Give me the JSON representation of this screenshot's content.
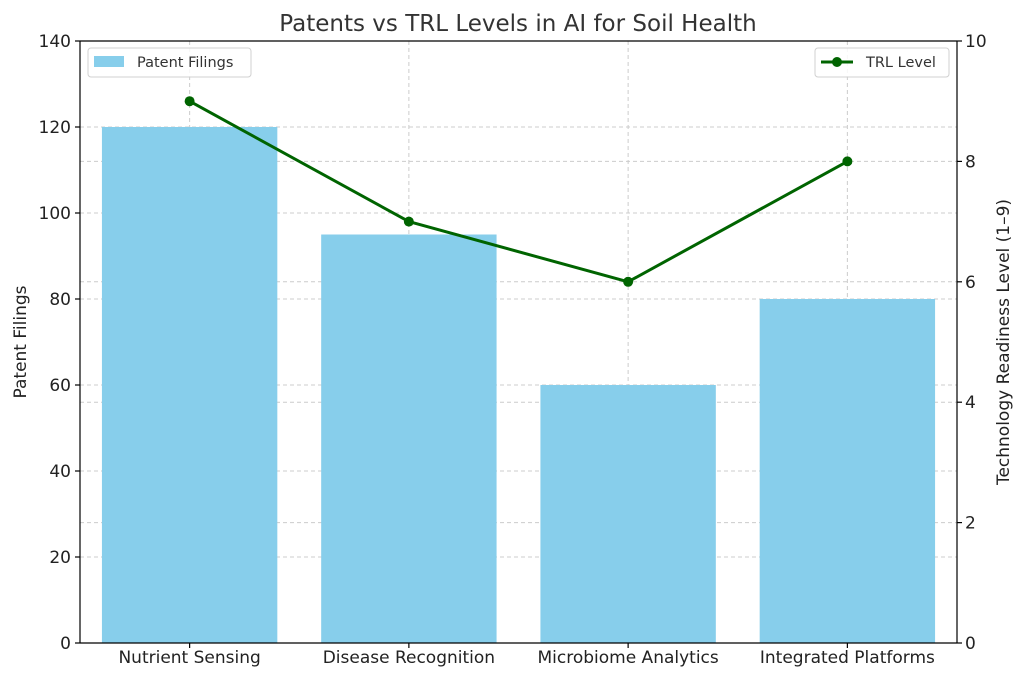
{
  "chart_data": {
    "type": "bar",
    "title": "Patents vs TRL Levels in AI for Soil Health",
    "categories": [
      "Nutrient Sensing",
      "Disease Recognition",
      "Microbiome Analytics",
      "Integrated Platforms"
    ],
    "series": [
      {
        "name": "Patent Filings",
        "type": "bar",
        "axis": "left",
        "values": [
          120,
          95,
          60,
          80
        ],
        "color": "#87ceeb"
      },
      {
        "name": "TRL Level",
        "type": "line",
        "axis": "right",
        "values": [
          9,
          7,
          6,
          8
        ],
        "color": "#006400"
      }
    ],
    "ylabel": "Patent Filings",
    "ylabel_right": "Technology Readiness Level (1–9)",
    "ylim": [
      0,
      140
    ],
    "ylim_right": [
      0,
      10
    ],
    "yticks": [
      0,
      20,
      40,
      60,
      80,
      100,
      120,
      140
    ],
    "yticks_right": [
      0,
      2,
      4,
      6,
      8,
      10
    ],
    "grid": true,
    "legend_bar_placement": "top-left",
    "legend_line_placement": "top-right"
  }
}
